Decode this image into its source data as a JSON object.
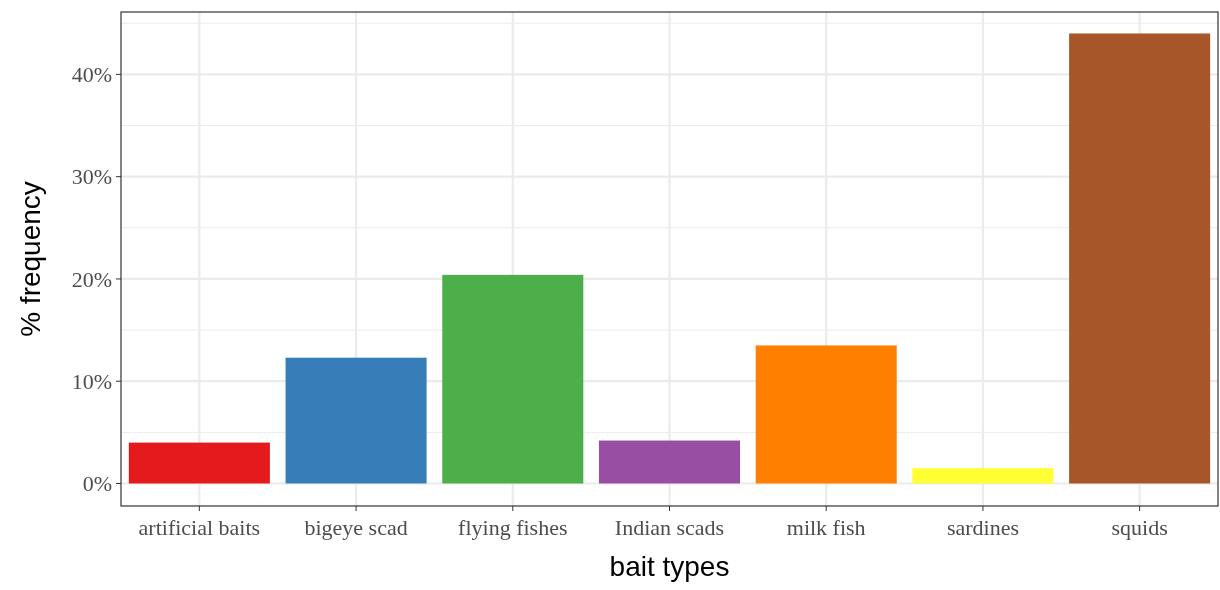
{
  "chart_data": {
    "type": "bar",
    "xlabel": "bait types",
    "ylabel": "% frequency",
    "categories": [
      "artificial baits",
      "bigeye scad",
      "flying fishes",
      "Indian scads",
      "milk fish",
      "sardines",
      "squids"
    ],
    "values": [
      4.0,
      12.3,
      20.4,
      4.2,
      13.5,
      1.5,
      44.0
    ],
    "colors": [
      "#e41a1c",
      "#377eb8",
      "#4daf4a",
      "#984ea3",
      "#ff7f00",
      "#ffff33",
      "#a65628"
    ],
    "ylim": [
      -2.2,
      46.1
    ],
    "yticks": [
      {
        "value": 0,
        "label": "0%"
      },
      {
        "value": 10,
        "label": "10%"
      },
      {
        "value": 20,
        "label": "20%"
      },
      {
        "value": 30,
        "label": "30%"
      },
      {
        "value": 40,
        "label": "40%"
      }
    ],
    "grid": true
  }
}
